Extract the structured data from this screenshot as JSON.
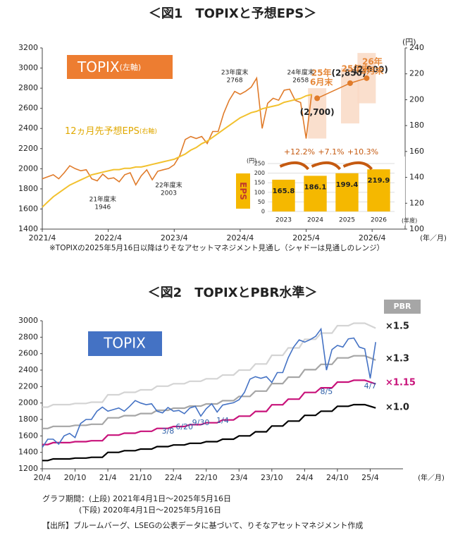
{
  "chart_data": [
    {
      "type": "line",
      "title": "＜図1　TOPIXと予想EPS＞",
      "x": [
        "2021/4",
        "2021/5",
        "2021/6",
        "2021/7",
        "2021/8",
        "2021/9",
        "2021/10",
        "2021/11",
        "2021/12",
        "2022/1",
        "2022/2",
        "2022/3",
        "2022/4",
        "2022/5",
        "2022/6",
        "2022/7",
        "2022/8",
        "2022/9",
        "2022/10",
        "2022/11",
        "2022/12",
        "2023/1",
        "2023/2",
        "2023/3",
        "2023/4",
        "2023/5",
        "2023/6",
        "2023/7",
        "2023/8",
        "2023/9",
        "2023/10",
        "2023/11",
        "2023/12",
        "2024/1",
        "2024/2",
        "2024/3",
        "2024/4",
        "2024/5",
        "2024/6",
        "2024/7",
        "2024/8",
        "2024/9",
        "2024/10",
        "2024/11",
        "2024/12",
        "2025/1",
        "2025/2",
        "2025/3",
        "2025/4",
        "2025/5"
      ],
      "xlim": [
        "2021/4",
        "2026/10"
      ],
      "xticks": [
        "2021/4",
        "2022/4",
        "2023/4",
        "2024/4",
        "2025/4",
        "2026/4"
      ],
      "ylim": [
        1400,
        3200
      ],
      "yticks": [
        1400,
        1600,
        1800,
        2000,
        2200,
        2400,
        2600,
        2800,
        3000,
        3200
      ],
      "y2lim": [
        100,
        240
      ],
      "y2ticks": [
        100,
        120,
        140,
        160,
        180,
        200,
        220,
        240
      ],
      "y2_unit": "(円)",
      "x_unit": "(年／月)",
      "series": [
        {
          "name": "TOPIX",
          "name_note": "(左軸)",
          "color": "#e07b2a",
          "values": [
            1900,
            1920,
            1940,
            1900,
            1960,
            2030,
            2000,
            1980,
            1990,
            1900,
            1880,
            1946,
            1900,
            1910,
            1870,
            1940,
            1960,
            1840,
            1930,
            1990,
            1890,
            1975,
            1990,
            2003,
            2040,
            2130,
            2290,
            2320,
            2300,
            2320,
            2250,
            2370,
            2370,
            2550,
            2680,
            2768,
            2740,
            2770,
            2810,
            2900,
            2400,
            2650,
            2700,
            2680,
            2780,
            2790,
            2680,
            2658,
            2300,
            2740
          ]
        },
        {
          "name": "12ヵ月先予想EPS",
          "name_note": "(右軸)",
          "color": "#f2c12e",
          "axis": "y2",
          "values": [
            117,
            121,
            125,
            128,
            131,
            134,
            136,
            138,
            140,
            142,
            143,
            144,
            145,
            146,
            146,
            147,
            147,
            148,
            148,
            149,
            150,
            151,
            152,
            153,
            154,
            156,
            158,
            161,
            163,
            166,
            168,
            171,
            174,
            177,
            180,
            183,
            186,
            188,
            190,
            191,
            193,
            194,
            195,
            196,
            198,
            199,
            200,
            201,
            203,
            204
          ]
        }
      ],
      "annotations": [
        {
          "text": "23年度末",
          "x": "2024/3",
          "value": 2768
        },
        {
          "text": "24年度末",
          "x": "2025/3",
          "value": 2658
        },
        {
          "text": "21年度末",
          "x": "2022/3",
          "value": 1946
        },
        {
          "text": "22年度末",
          "x": "2023/3",
          "value": 2003
        }
      ],
      "forecast": {
        "color": "#e07b2a",
        "shade": "#f9d9c4",
        "x": [
          "2025/6",
          "2025/12",
          "2026/3"
        ],
        "values": [
          2700,
          2850,
          2900
        ],
        "value_labels": [
          "(2,700)",
          "(2,850)",
          "(2,900)"
        ],
        "labels": [
          [
            "25年",
            "6月末"
          ],
          [
            "25年末"
          ],
          [
            "26年",
            "3月末"
          ]
        ],
        "low": [
          2300,
          2450,
          2650
        ],
        "high": [
          2800,
          3000,
          3150
        ]
      },
      "inset": {
        "type": "bar",
        "label": "EPS",
        "unit": "(円)",
        "x_unit": "(年度)",
        "categories": [
          "2023",
          "2024",
          "2025",
          "2026"
        ],
        "values": [
          165.8,
          186.1,
          199.4,
          219.9
        ],
        "color": "#f5b800",
        "ylim": [
          0,
          250
        ],
        "yticks": [
          0,
          50,
          100,
          150,
          200,
          250
        ],
        "growth_labels": [
          "+12.2%",
          "+7.1%",
          "+10.3%"
        ]
      },
      "note": "※TOPIXの2025年5月16日以降はりそなアセットマネジメント見通し（シャドーは見通しのレンジ）"
    },
    {
      "type": "line",
      "title": "＜図2　TOPIXとPBR水準＞",
      "x": [
        "20/4",
        "20/5",
        "20/6",
        "20/7",
        "20/8",
        "20/9",
        "20/10",
        "20/11",
        "20/12",
        "21/1",
        "21/2",
        "21/3",
        "21/4",
        "21/5",
        "21/6",
        "21/7",
        "21/8",
        "21/9",
        "21/10",
        "21/11",
        "21/12",
        "22/1",
        "22/2",
        "22/3",
        "22/4",
        "22/5",
        "22/6",
        "22/7",
        "22/8",
        "22/9",
        "22/10",
        "22/11",
        "22/12",
        "23/1",
        "23/2",
        "23/3",
        "23/4",
        "23/5",
        "23/6",
        "23/7",
        "23/8",
        "23/9",
        "23/10",
        "23/11",
        "23/12",
        "24/1",
        "24/2",
        "24/3",
        "24/4",
        "24/5",
        "24/6",
        "24/7",
        "24/8",
        "24/9",
        "24/10",
        "24/11",
        "24/12",
        "25/1",
        "25/2",
        "25/3",
        "25/4",
        "25/5"
      ],
      "xlim": [
        "20/4",
        "25/10"
      ],
      "xticks": [
        "20/4",
        "20/10",
        "21/4",
        "21/10",
        "22/4",
        "22/10",
        "23/4",
        "23/10",
        "24/4",
        "24/10",
        "25/4"
      ],
      "ylim": [
        1200,
        3000
      ],
      "yticks": [
        1200,
        1400,
        1600,
        1800,
        2000,
        2200,
        2400,
        2600,
        2800,
        3000
      ],
      "x_unit": "(年／月)",
      "legend_title": "PBR",
      "series": [
        {
          "name": "TOPIX",
          "color": "#4472c4",
          "values": [
            1460,
            1560,
            1560,
            1500,
            1600,
            1630,
            1580,
            1750,
            1800,
            1800,
            1900,
            1950,
            1900,
            1920,
            1940,
            1900,
            1960,
            2030,
            2000,
            1980,
            1990,
            1900,
            1880,
            1946,
            1900,
            1910,
            1870,
            1940,
            1960,
            1840,
            1930,
            1990,
            1890,
            1975,
            1990,
            2003,
            2040,
            2130,
            2290,
            2320,
            2300,
            2320,
            2250,
            2370,
            2370,
            2550,
            2680,
            2768,
            2740,
            2770,
            2810,
            2900,
            2400,
            2650,
            2700,
            2680,
            2780,
            2790,
            2680,
            2658,
            2300,
            2740
          ]
        },
        {
          "name": "×1.5",
          "color": "#d4d4d4",
          "values": [
            1950,
            1950,
            1980,
            1980,
            1980,
            1980,
            1995,
            1995,
            1995,
            2010,
            2010,
            2010,
            2100,
            2100,
            2100,
            2130,
            2130,
            2130,
            2160,
            2160,
            2160,
            2205,
            2205,
            2205,
            2235,
            2235,
            2235,
            2265,
            2265,
            2265,
            2295,
            2295,
            2295,
            2340,
            2340,
            2340,
            2400,
            2400,
            2400,
            2475,
            2475,
            2475,
            2580,
            2580,
            2580,
            2670,
            2670,
            2670,
            2775,
            2775,
            2775,
            2850,
            2850,
            2850,
            2940,
            2940,
            2940,
            2970,
            2970,
            2970,
            2940,
            2910
          ]
        },
        {
          "name": "×1.3",
          "color": "#a6a6a6",
          "values": [
            1690,
            1690,
            1716,
            1716,
            1716,
            1716,
            1729,
            1729,
            1729,
            1742,
            1742,
            1742,
            1820,
            1820,
            1820,
            1846,
            1846,
            1846,
            1872,
            1872,
            1872,
            1911,
            1911,
            1911,
            1937,
            1937,
            1937,
            1963,
            1963,
            1963,
            1989,
            1989,
            1989,
            2028,
            2028,
            2028,
            2080,
            2080,
            2080,
            2145,
            2145,
            2145,
            2236,
            2236,
            2236,
            2314,
            2314,
            2314,
            2405,
            2405,
            2405,
            2470,
            2470,
            2470,
            2548,
            2548,
            2548,
            2574,
            2574,
            2574,
            2548,
            2522
          ]
        },
        {
          "name": "×1.15",
          "color": "#c8127a",
          "values": [
            1495,
            1495,
            1518,
            1518,
            1518,
            1518,
            1530,
            1530,
            1530,
            1541,
            1541,
            1541,
            1610,
            1610,
            1610,
            1633,
            1633,
            1633,
            1656,
            1656,
            1656,
            1691,
            1691,
            1691,
            1714,
            1714,
            1714,
            1737,
            1737,
            1737,
            1760,
            1760,
            1760,
            1794,
            1794,
            1794,
            1840,
            1840,
            1840,
            1898,
            1898,
            1898,
            1978,
            1978,
            1978,
            2047,
            2047,
            2047,
            2128,
            2128,
            2128,
            2185,
            2185,
            2185,
            2254,
            2254,
            2254,
            2277,
            2277,
            2277,
            2254,
            2231
          ]
        },
        {
          "name": "×1.0",
          "color": "#000000",
          "values": [
            1300,
            1300,
            1320,
            1320,
            1320,
            1320,
            1330,
            1330,
            1330,
            1340,
            1340,
            1340,
            1400,
            1400,
            1400,
            1420,
            1420,
            1420,
            1440,
            1440,
            1440,
            1470,
            1470,
            1470,
            1490,
            1490,
            1490,
            1510,
            1510,
            1510,
            1530,
            1530,
            1530,
            1560,
            1560,
            1560,
            1600,
            1600,
            1600,
            1650,
            1650,
            1650,
            1720,
            1720,
            1720,
            1780,
            1780,
            1780,
            1850,
            1850,
            1850,
            1900,
            1900,
            1900,
            1960,
            1960,
            1960,
            1980,
            1980,
            1980,
            1960,
            1940
          ]
        }
      ],
      "annotations": [
        {
          "text": "3/8",
          "x": "22/3"
        },
        {
          "text": "6/20",
          "x": "22/6"
        },
        {
          "text": "9/30",
          "x": "22/9"
        },
        {
          "text": "1/4",
          "x": "23/1"
        },
        {
          "text": "8/5",
          "x": "24/8"
        },
        {
          "text": "4/7",
          "x": "25/4"
        }
      ]
    }
  ],
  "footer": [
    "グラフ期間：(上段) 2021年4月1日～2025年5月16日",
    "(下段) 2020年4月1日～2025年5月16日",
    "【出所】ブルームバーグ、LSEGの公表データに基づいて、りそなアセットマネジメント作成"
  ]
}
